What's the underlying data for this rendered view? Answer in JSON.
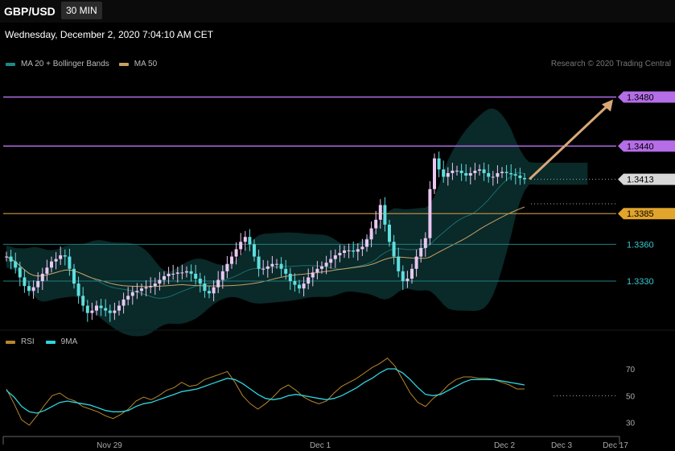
{
  "header": {
    "symbol": "GBP/USD",
    "timeframe": "30 MIN"
  },
  "timestamp": "Wednesday, December 2, 2020 7:04:10 AM CET",
  "legend": {
    "main": [
      {
        "label": "MA 20 + Bollinger Bands",
        "color": "#1b8a88"
      },
      {
        "label": "MA 50",
        "color": "#c8a066"
      }
    ],
    "rsi": [
      {
        "label": "RSI",
        "color": "#b8862b"
      },
      {
        "label": "9MA",
        "color": "#2fd4e0"
      }
    ]
  },
  "credit": "Research © 2020 Trading Central",
  "chart_data": [
    {
      "type": "candlestick",
      "ylim": [
        1.329,
        1.35
      ],
      "x_ticks": [
        "Nov 29",
        "Dec 1",
        "Dec 2",
        "Dec 3",
        "Dec 17"
      ],
      "levels": [
        {
          "label": "1.3480",
          "value": 1.348,
          "kind": "target"
        },
        {
          "label": "1.3440",
          "value": 1.344,
          "kind": "resistance"
        },
        {
          "label": "1.3413",
          "value": 1.3413,
          "kind": "last"
        },
        {
          "label": "1.3385",
          "value": 1.3385,
          "kind": "pivot"
        },
        {
          "label": "1.3360",
          "value": 1.336,
          "kind": "support"
        },
        {
          "label": "1.3330",
          "value": 1.333,
          "kind": "support"
        }
      ],
      "closes": [
        1.335,
        1.3346,
        1.3341,
        1.3333,
        1.3326,
        1.3322,
        1.3325,
        1.333,
        1.3336,
        1.3341,
        1.3346,
        1.3348,
        1.3351,
        1.335,
        1.334,
        1.3328,
        1.3318,
        1.331,
        1.3304,
        1.3306,
        1.331,
        1.3308,
        1.3306,
        1.3304,
        1.3306,
        1.331,
        1.3315,
        1.3318,
        1.3321,
        1.3322,
        1.3324,
        1.3325,
        1.3326,
        1.3328,
        1.3331,
        1.3334,
        1.3336,
        1.3336,
        1.3337,
        1.3337,
        1.3338,
        1.3336,
        1.3332,
        1.3328,
        1.3322,
        1.332,
        1.3325,
        1.3331,
        1.3338,
        1.3344,
        1.335,
        1.3356,
        1.3362,
        1.3366,
        1.336,
        1.335,
        1.334,
        1.334,
        1.3342,
        1.3344,
        1.3344,
        1.334,
        1.3336,
        1.333,
        1.3327,
        1.3324,
        1.3328,
        1.3333,
        1.3337,
        1.334,
        1.3342,
        1.3345,
        1.3348,
        1.3351,
        1.3353,
        1.3355,
        1.3355,
        1.3354,
        1.3356,
        1.3358,
        1.3364,
        1.3373,
        1.338,
        1.3392,
        1.3376,
        1.3362,
        1.335,
        1.3338,
        1.333,
        1.3332,
        1.334,
        1.335,
        1.3357,
        1.3365,
        1.3405,
        1.343,
        1.3421,
        1.3415,
        1.3418,
        1.342,
        1.342,
        1.3418,
        1.3416,
        1.3418,
        1.342,
        1.3421,
        1.3418,
        1.3415,
        1.3415,
        1.3418,
        1.3419,
        1.3418,
        1.3417,
        1.3416,
        1.3414,
        1.3413
      ]
    },
    {
      "type": "line",
      "title": "RSI",
      "ylim": [
        22,
        82
      ],
      "y_ticks": [
        70,
        50,
        30
      ],
      "series": [
        {
          "name": "RSI",
          "values": [
            55,
            44,
            32,
            28,
            35,
            43,
            50,
            52,
            48,
            46,
            42,
            40,
            38,
            35,
            33,
            36,
            40,
            46,
            49,
            47,
            50,
            54,
            56,
            60,
            57,
            58,
            62,
            64,
            66,
            68,
            60,
            50,
            44,
            40,
            44,
            49,
            55,
            58,
            54,
            49,
            46,
            44,
            46,
            52,
            57,
            60,
            63,
            67,
            71,
            74,
            78,
            72,
            62,
            52,
            45,
            42,
            48,
            52,
            58,
            62,
            64,
            64,
            63,
            63,
            62,
            60,
            58,
            55,
            55
          ]
        },
        {
          "name": "9MA",
          "values": [
            54,
            49,
            42,
            38,
            37,
            39,
            42,
            45,
            46,
            45,
            44,
            43,
            41,
            39,
            38,
            38,
            39,
            42,
            44,
            45,
            47,
            49,
            51,
            53,
            54,
            55,
            57,
            59,
            61,
            63,
            62,
            59,
            55,
            51,
            48,
            47,
            48,
            50,
            51,
            50,
            49,
            48,
            47,
            48,
            50,
            53,
            56,
            60,
            63,
            67,
            70,
            70,
            67,
            62,
            56,
            51,
            50,
            51,
            54,
            57,
            60,
            62,
            62,
            62,
            62,
            61,
            60,
            59,
            58
          ]
        }
      ]
    }
  ]
}
